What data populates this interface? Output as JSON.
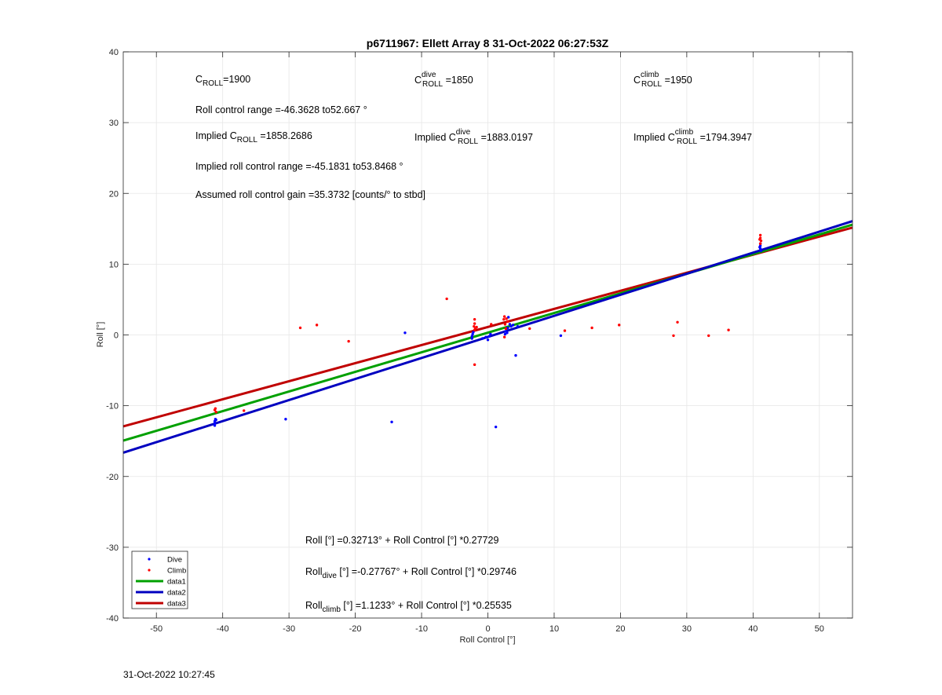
{
  "timestamp": "31-Oct-2022 10:27:45",
  "annotations": {
    "c_roll": {
      "pre": "C",
      "sub": "ROLL",
      "post": "=1900"
    },
    "c_roll_dive": {
      "pre": "C",
      "sup": "dive",
      "sub": "ROLL",
      "post": " =1850"
    },
    "c_roll_climb": {
      "pre": "C",
      "sup": "climb",
      "sub": "ROLL",
      "post": " =1950"
    },
    "roll_control_range": "Roll control range =-46.3628 to52.667 °",
    "implied_c_roll": {
      "pre": "Implied C",
      "sub": "ROLL",
      "post": " =1858.2686"
    },
    "implied_c_roll_dive": {
      "pre": "Implied C",
      "sup": "dive",
      "sub": "ROLL",
      "post": " =1883.0197"
    },
    "implied_c_roll_climb": {
      "pre": "Implied C",
      "sup": "climb",
      "sub": "ROLL",
      "post": " =1794.3947"
    },
    "implied_roll_range": "Implied roll control range =-45.1831 to53.8468 °",
    "assumed_gain": "Assumed roll control gain =35.3732 [counts/° to stbd]",
    "fit_all": {
      "pre": "Roll [°] =0.32713° + Roll Control [°] *0.27729"
    },
    "fit_dive": {
      "pre": "Roll",
      "sub": "dive",
      "post": " [°] =-0.27767° + Roll Control [°] *0.29746"
    },
    "fit_climb": {
      "pre": "Roll",
      "sub": "climb",
      "post": " [°] =1.1233° + Roll Control [°] *0.25535"
    }
  },
  "chart_data": {
    "type": "scatter",
    "title": "p6711967: Ellett Array 8 31-Oct-2022 06:27:53Z",
    "xlabel": "Roll Control [°]",
    "ylabel": "Roll [°]",
    "xlim": [
      -55,
      55
    ],
    "ylim": [
      -40,
      40
    ],
    "xticks": [
      -50,
      -40,
      -30,
      -20,
      -10,
      0,
      10,
      20,
      30,
      40,
      50
    ],
    "yticks": [
      -40,
      -30,
      -20,
      -10,
      0,
      10,
      20,
      30,
      40
    ],
    "grid": true,
    "legend_position": "bottom-left",
    "colors": {
      "dive": "#0000ff",
      "climb": "#ff0000",
      "data1": "#00a000",
      "data2": "#0000c0",
      "data3": "#c00000"
    },
    "series": [
      {
        "name": "Dive",
        "kind": "points",
        "color": "#0000ff",
        "points": [
          [
            -41.2,
            -12.5
          ],
          [
            -41.2,
            -12.2
          ],
          [
            -41.1,
            -11.9
          ],
          [
            -41.2,
            -12.8
          ],
          [
            -41.0,
            -12.0
          ],
          [
            -30.5,
            -11.9
          ],
          [
            -14.5,
            -12.3
          ],
          [
            -12.5,
            0.3
          ],
          [
            -2.4,
            -0.2
          ],
          [
            -2.3,
            0.1
          ],
          [
            -2.4,
            -0.5
          ],
          [
            -2.2,
            0.4
          ],
          [
            -0.8,
            -0.5
          ],
          [
            -0.3,
            -0.3
          ],
          [
            0,
            -0.7
          ],
          [
            0.2,
            -0.2
          ],
          [
            0.4,
            0.1
          ],
          [
            1.2,
            -13.0
          ],
          [
            2.6,
            0.1
          ],
          [
            2.7,
            0.5
          ],
          [
            2.8,
            0.9
          ],
          [
            2.9,
            0.3
          ],
          [
            3.0,
            1.0
          ],
          [
            3.1,
            2.5
          ],
          [
            3.3,
            1.5
          ],
          [
            3.5,
            1.2
          ],
          [
            3.8,
            1.4
          ],
          [
            4.2,
            -2.9
          ],
          [
            4.5,
            1.2
          ],
          [
            11.0,
            -0.1
          ],
          [
            41.1,
            12.2
          ],
          [
            41.1,
            12.6
          ],
          [
            41.2,
            11.9
          ],
          [
            41.1,
            12.9
          ],
          [
            41.0,
            12.4
          ]
        ]
      },
      {
        "name": "Climb",
        "kind": "points",
        "color": "#ff0000",
        "points": [
          [
            -41.2,
            -10.6
          ],
          [
            -41.1,
            -10.4
          ],
          [
            -41.0,
            -10.9
          ],
          [
            -36.8,
            -10.7
          ],
          [
            -28.3,
            1.0
          ],
          [
            -25.8,
            1.4
          ],
          [
            -21.0,
            -0.9
          ],
          [
            -6.2,
            5.1
          ],
          [
            -2.0,
            2.2
          ],
          [
            -2.0,
            1.6
          ],
          [
            -2.1,
            1.2
          ],
          [
            -1.9,
            0.9
          ],
          [
            -2.0,
            0.7
          ],
          [
            -2.0,
            -4.2
          ],
          [
            -1.7,
            1.1
          ],
          [
            0.5,
            1.5
          ],
          [
            2.4,
            2.2
          ],
          [
            2.5,
            2.6
          ],
          [
            2.6,
            1.5
          ],
          [
            2.7,
            0.9
          ],
          [
            2.5,
            -0.3
          ],
          [
            2.8,
            2.3
          ],
          [
            3.0,
            1.9
          ],
          [
            6.3,
            0.9
          ],
          [
            11.6,
            0.6
          ],
          [
            15.7,
            1.0
          ],
          [
            19.8,
            1.4
          ],
          [
            28.0,
            -0.1
          ],
          [
            28.6,
            1.8
          ],
          [
            33.3,
            -0.1
          ],
          [
            36.3,
            0.7
          ],
          [
            41.1,
            14.1
          ],
          [
            41.1,
            13.7
          ],
          [
            41.2,
            13.3
          ],
          [
            41.1,
            12.9
          ],
          [
            41.0,
            13.5
          ]
        ]
      },
      {
        "name": "data1",
        "kind": "line",
        "color": "#00a000",
        "intercept": 0.32713,
        "slope": 0.27729
      },
      {
        "name": "data2",
        "kind": "line",
        "color": "#0000c0",
        "intercept": -0.27767,
        "slope": 0.29746
      },
      {
        "name": "data3",
        "kind": "line",
        "color": "#c00000",
        "intercept": 1.1233,
        "slope": 0.25535
      }
    ]
  }
}
